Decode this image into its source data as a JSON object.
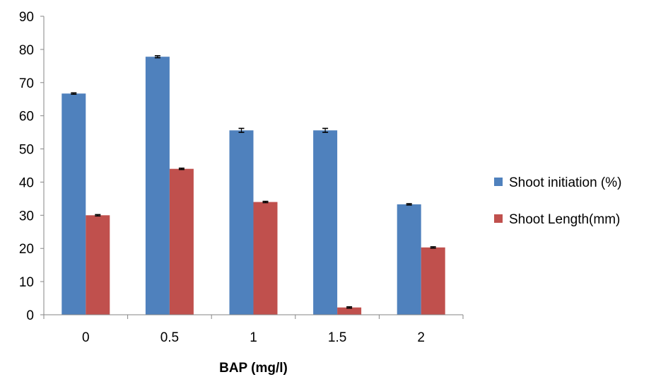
{
  "chart_data": {
    "type": "bar",
    "categories": [
      "0",
      "0.5",
      "1",
      "1.5",
      "2"
    ],
    "series": [
      {
        "name": "Shoot initiation (%)",
        "values": [
          66.7,
          77.8,
          55.6,
          55.6,
          33.3
        ],
        "errors": [
          0.2,
          0.3,
          0.6,
          0.6,
          0.2
        ],
        "color": "#4F81BD"
      },
      {
        "name": "Shoot Length(mm)",
        "values": [
          30.0,
          44.0,
          34.0,
          2.2,
          20.3
        ],
        "errors": [
          0.2,
          0.2,
          0.2,
          0.2,
          0.2
        ],
        "color": "#C0504D"
      }
    ],
    "title": "",
    "xlabel": "BAP (mg/l)",
    "ylabel": "",
    "ylim": [
      0,
      90
    ],
    "yticks": [
      "0",
      "10",
      "20",
      "30",
      "40",
      "50",
      "60",
      "70",
      "80",
      "90"
    ],
    "grid": false,
    "legend_position": "right"
  }
}
